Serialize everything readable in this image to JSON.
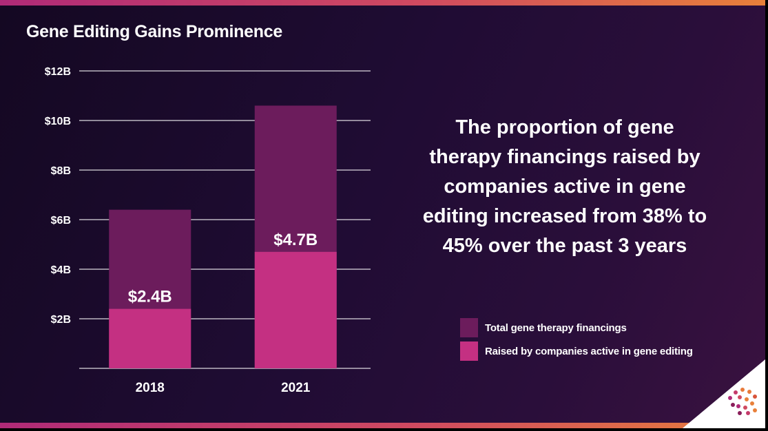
{
  "slide": {
    "title": "Gene Editing Gains Prominence",
    "callout": "The proportion of gene therapy financings raised by companies active in gene editing increased from 38% to 45% over the past 3 years"
  },
  "colors": {
    "total": "#6c1c5c",
    "editing": "#c43082",
    "gridline": "#ffffff"
  },
  "legend": {
    "items": [
      {
        "label": "Total gene therapy financings",
        "color": "#6c1c5c"
      },
      {
        "label": "Raised by companies active in gene editing",
        "color": "#c43082"
      }
    ]
  },
  "chart_data": {
    "type": "bar",
    "stacked": "overlay",
    "title": "Gene Editing Gains Prominence",
    "categories": [
      "2018",
      "2021"
    ],
    "series": [
      {
        "name": "Total gene therapy financings",
        "values": [
          6.4,
          10.6
        ],
        "color": "#6c1c5c"
      },
      {
        "name": "Raised by companies active in gene editing",
        "values": [
          2.4,
          4.7
        ],
        "color": "#c43082"
      }
    ],
    "data_labels": [
      "$2.4B",
      "$4.7B"
    ],
    "ylim": [
      0,
      12
    ],
    "yticks": [
      2,
      4,
      6,
      8,
      10,
      12
    ],
    "ytick_labels": [
      "$2B",
      "$4B",
      "$6B",
      "$8B",
      "$10B",
      "$12B"
    ],
    "xlabel": "",
    "ylabel": "",
    "grid": true,
    "legend_position": "right"
  }
}
